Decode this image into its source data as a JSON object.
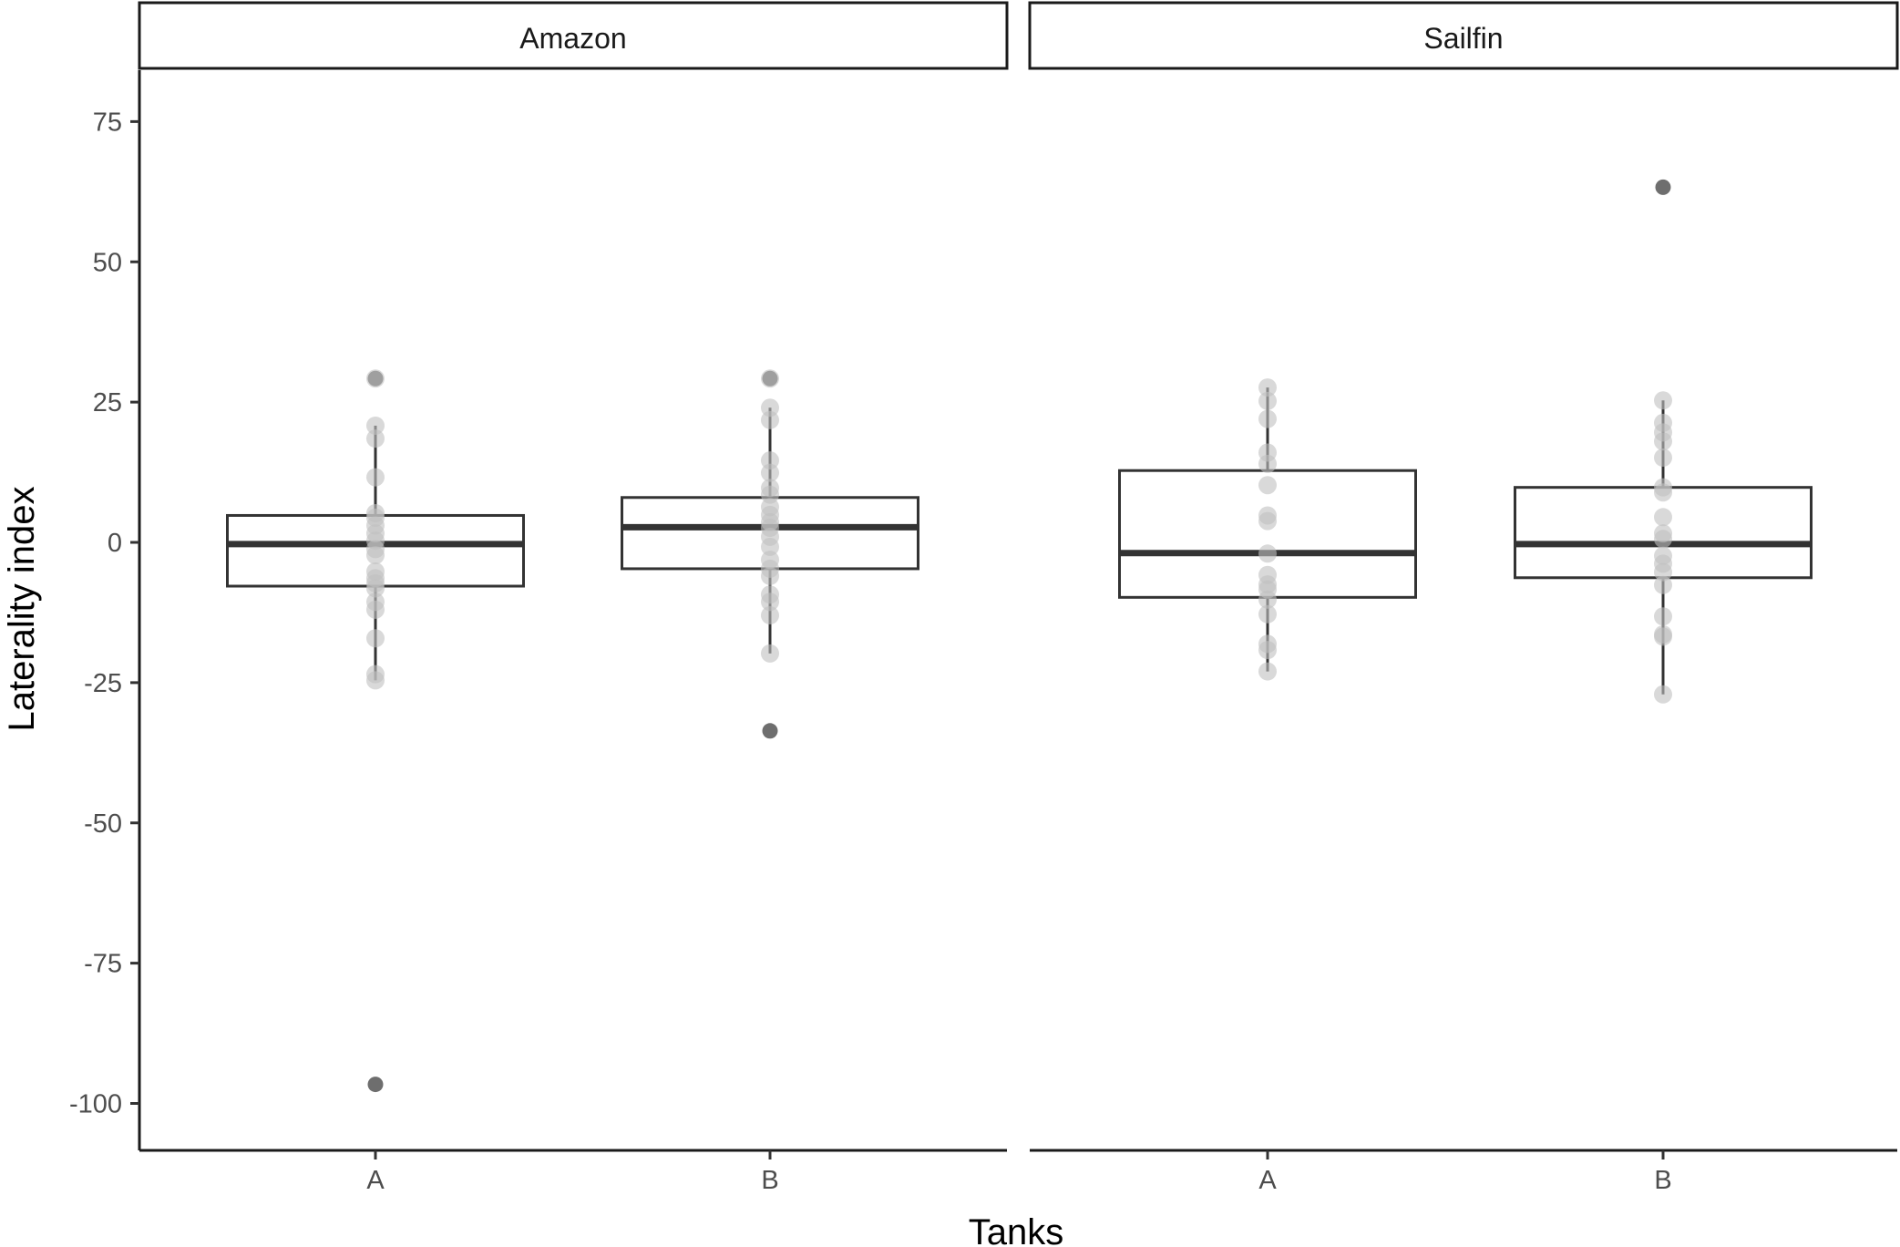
{
  "chart_data": {
    "type": "box",
    "xlabel": "Tanks",
    "ylabel": "Laterality index",
    "ylim": [
      -108,
      84
    ],
    "yticks": [
      75,
      50,
      25,
      0,
      -25,
      -50,
      -75,
      -100
    ],
    "categories": [
      "A",
      "B"
    ],
    "grid": false,
    "legend": "none",
    "colors": {
      "box_line": "#333333",
      "point": "#bfbfbf",
      "outlier": "#6e6e6e"
    },
    "panels": [
      {
        "name": "Amazon",
        "groups": [
          {
            "category": "A",
            "box": {
              "q1": -7.8,
              "median": -0.3,
              "q3": 4.8,
              "whisker_low": -24.6,
              "whisker_high": 20.8
            },
            "points": [
              29.2,
              20.8,
              18.5,
              11.6,
              5.2,
              4.4,
              3.0,
              1.6,
              0.3,
              -1.2,
              -2.3,
              -5.2,
              -6.4,
              -7.3,
              -8.2,
              -10.6,
              -12.0,
              -17.1,
              -23.5,
              -24.6
            ],
            "outliers": [
              29.2,
              -96.6
            ]
          },
          {
            "category": "B",
            "box": {
              "q1": -4.7,
              "median": 2.7,
              "q3": 8.0,
              "whisker_low": -19.8,
              "whisker_high": 24.0
            },
            "points": [
              29.2,
              24.0,
              21.8,
              14.6,
              12.4,
              9.7,
              8.5,
              6.3,
              4.9,
              3.6,
              2.6,
              1.0,
              -0.8,
              -3.1,
              -4.7,
              -6.0,
              -9.3,
              -10.6,
              -13.0,
              -19.8
            ],
            "outliers": [
              29.2,
              -33.6
            ]
          }
        ]
      },
      {
        "name": "Sailfin",
        "groups": [
          {
            "category": "A",
            "box": {
              "q1": -9.8,
              "median": -1.9,
              "q3": 12.8,
              "whisker_low": -23.0,
              "whisker_high": 27.6
            },
            "points": [
              27.6,
              25.2,
              22.0,
              16.0,
              14.0,
              10.2,
              4.8,
              3.8,
              -2.0,
              -5.8,
              -7.5,
              -8.4,
              -10.2,
              -12.8,
              -18.1,
              -19.2,
              -23.0
            ],
            "outliers": []
          },
          {
            "category": "B",
            "box": {
              "q1": -6.3,
              "median": -0.3,
              "q3": 9.8,
              "whisker_low": -27.1,
              "whisker_high": 25.3
            },
            "points": [
              25.3,
              21.3,
              19.6,
              18.0,
              15.1,
              9.8,
              8.9,
              4.5,
              1.6,
              0.6,
              -2.4,
              -3.8,
              -5.3,
              -7.6,
              -13.2,
              -16.4,
              -16.8,
              -27.1
            ],
            "outliers": [
              63.3
            ]
          }
        ]
      }
    ]
  }
}
